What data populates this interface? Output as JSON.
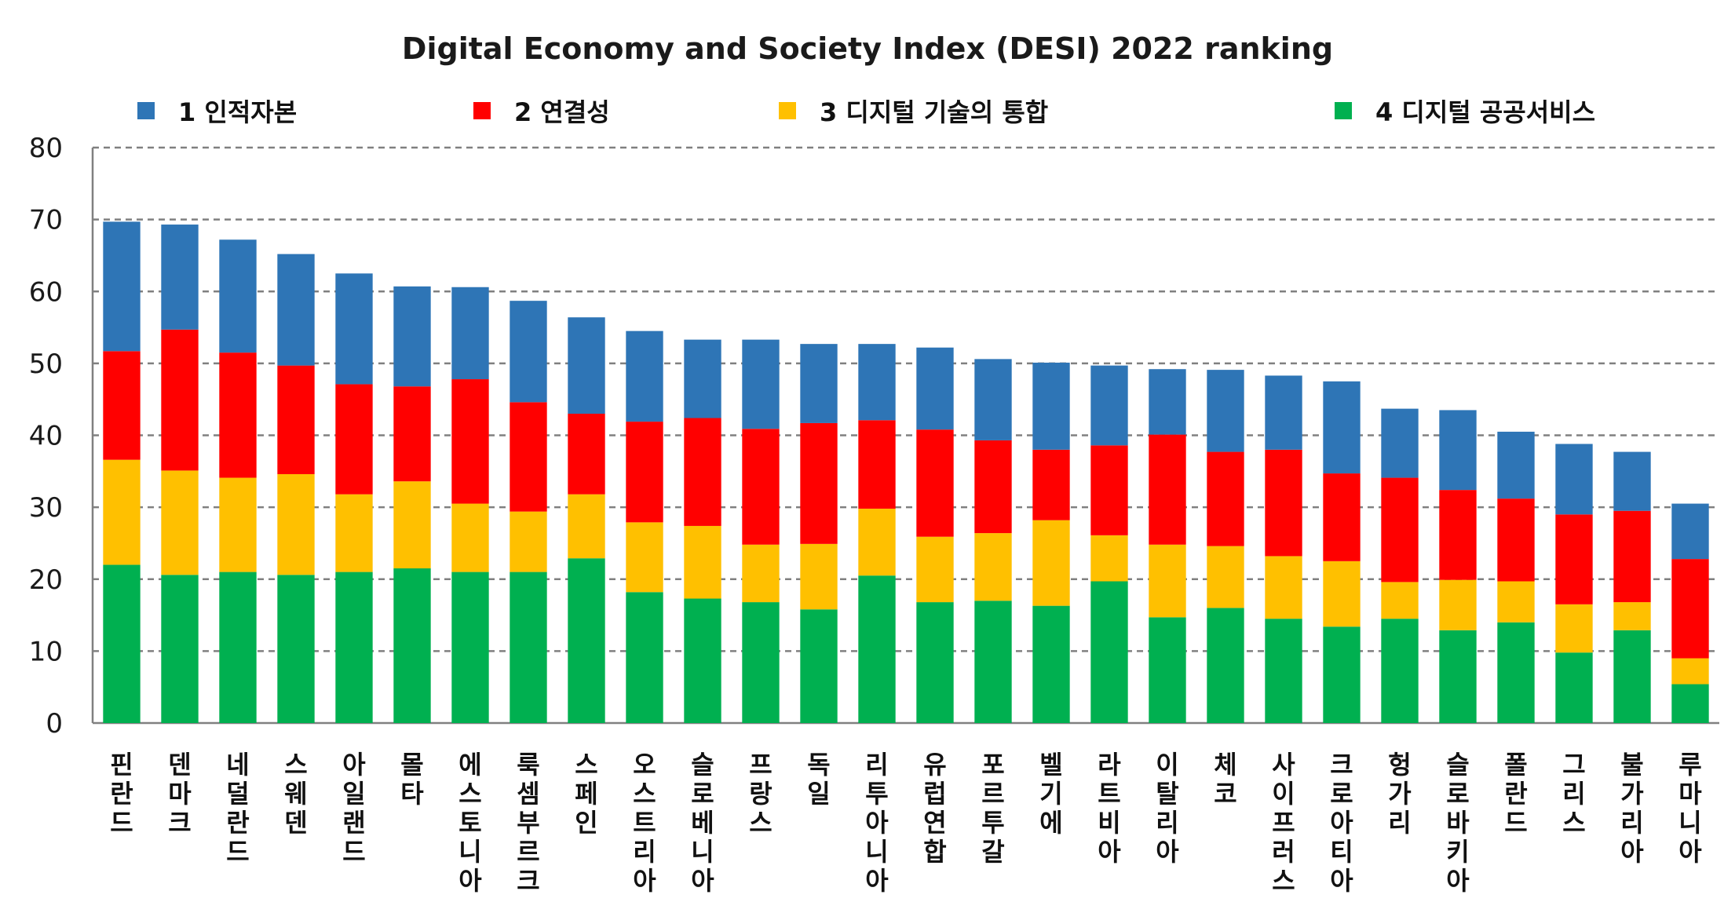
{
  "chart_data": {
    "type": "bar",
    "stacked": true,
    "title": "Digital Economy and Society Index (DESI) 2022 ranking",
    "ylim": [
      0,
      80
    ],
    "yticks": [
      0,
      10,
      20,
      30,
      40,
      50,
      60,
      70,
      80
    ],
    "grid": true,
    "legend_position": "top",
    "categories": [
      "핀란드",
      "덴마크",
      "네덜란드",
      "스웨덴",
      "아일랜드",
      "몰타",
      "에스토니아",
      "룩셈부르크",
      "스페인",
      "오스트리아",
      "슬로베니아",
      "프랑스",
      "독일",
      "리투아니아",
      "유럽연합",
      "포르투갈",
      "벨기에",
      "라트비아",
      "이탈리아",
      "체코",
      "사이프러스",
      "크로아티아",
      "헝가리",
      "슬로바키아",
      "폴란드",
      "그리스",
      "불가리아",
      "루마니아"
    ],
    "series": [
      {
        "name": "4 디지털 공공서비스",
        "color": "#00b050",
        "values": [
          22.0,
          20.6,
          21.0,
          20.6,
          21.0,
          21.5,
          21.0,
          21.0,
          22.9,
          18.2,
          17.3,
          16.8,
          15.8,
          20.5,
          16.8,
          17.0,
          16.3,
          19.7,
          14.7,
          16.0,
          14.5,
          13.4,
          14.5,
          12.9,
          14.0,
          9.8,
          12.9,
          5.4
        ]
      },
      {
        "name": "3 디지털 기술의 통합",
        "color": "#ffc000",
        "values": [
          14.6,
          14.5,
          13.1,
          14.0,
          10.8,
          12.1,
          9.5,
          8.4,
          8.9,
          9.7,
          10.1,
          8.0,
          9.1,
          9.3,
          9.1,
          9.4,
          11.9,
          6.4,
          10.1,
          8.6,
          8.7,
          9.1,
          5.1,
          7.0,
          5.7,
          6.7,
          3.9,
          3.6
        ]
      },
      {
        "name": "2 연결성",
        "color": "#ff0000",
        "values": [
          15.1,
          19.6,
          17.4,
          15.1,
          15.3,
          13.2,
          17.3,
          15.2,
          11.2,
          14.0,
          15.0,
          16.1,
          16.8,
          12.3,
          14.9,
          12.9,
          9.8,
          12.5,
          15.3,
          13.1,
          14.8,
          12.2,
          14.5,
          12.5,
          11.5,
          12.5,
          12.7,
          13.8
        ]
      },
      {
        "name": "1 인적자본",
        "color": "#2e75b6",
        "values": [
          18.0,
          14.6,
          15.7,
          15.5,
          15.4,
          13.9,
          12.8,
          14.1,
          13.4,
          12.6,
          10.9,
          12.4,
          11.0,
          10.6,
          11.4,
          11.3,
          12.1,
          11.1,
          9.1,
          11.4,
          10.3,
          12.8,
          9.6,
          11.1,
          9.3,
          9.8,
          8.2,
          7.7
        ]
      }
    ],
    "legend": [
      {
        "label": "1 인적자본",
        "color": "#2e75b6"
      },
      {
        "label": "2 연결성",
        "color": "#ff0000"
      },
      {
        "label": "3 디지털 기술의 통합",
        "color": "#ffc000"
      },
      {
        "label": "4 디지털 공공서비스",
        "color": "#00b050"
      }
    ]
  }
}
